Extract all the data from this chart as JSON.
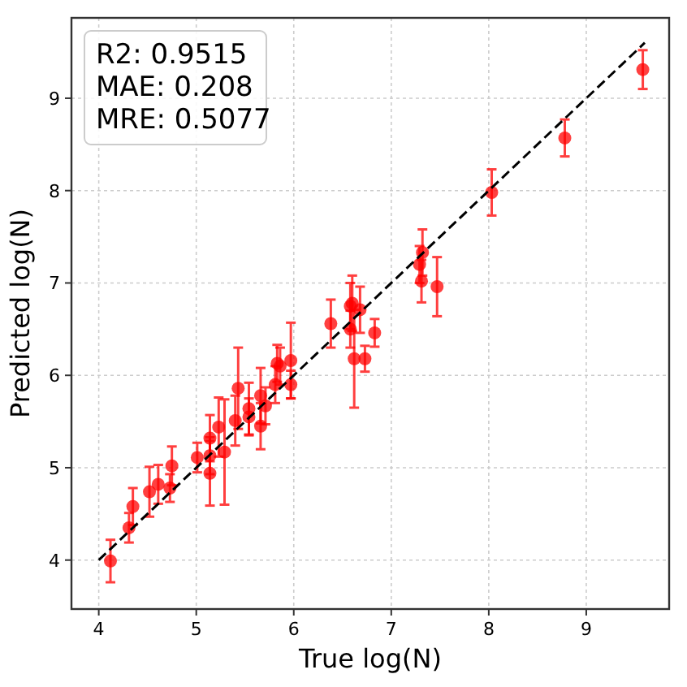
{
  "chart_data": {
    "type": "scatter",
    "xlabel": "True log(N)",
    "ylabel": "Predicted log(N)",
    "xlim": [
      3.72,
      9.85
    ],
    "ylim": [
      3.47,
      9.87
    ],
    "xticks": [
      4,
      5,
      6,
      7,
      8,
      9
    ],
    "yticks": [
      4,
      5,
      6,
      7,
      8,
      9
    ],
    "grid": true,
    "annotations": [
      "R2: 0.9515",
      "MAE: 0.208",
      "MRE: 0.5077"
    ],
    "series": [
      {
        "color": "#ff0000",
        "marker": "circle",
        "x": [
          4.12,
          4.31,
          4.35,
          4.52,
          4.61,
          4.75,
          4.73,
          5.01,
          5.14,
          5.14,
          5.14,
          5.23,
          5.29,
          5.43,
          5.4,
          5.54,
          5.54,
          5.66,
          5.66,
          5.71,
          5.81,
          5.83,
          5.86,
          5.97,
          5.97,
          6.38,
          6.58,
          6.6,
          6.58,
          6.62,
          6.68,
          6.73,
          6.83,
          7.29,
          7.32,
          7.31,
          7.47,
          8.03,
          8.78,
          9.58
        ],
        "values": [
          3.99,
          4.35,
          4.58,
          4.74,
          4.82,
          5.02,
          4.78,
          5.11,
          5.13,
          4.94,
          5.32,
          5.44,
          5.17,
          5.86,
          5.51,
          5.64,
          5.55,
          5.78,
          5.45,
          5.67,
          5.9,
          6.13,
          6.1,
          5.9,
          6.16,
          6.56,
          6.75,
          6.78,
          6.5,
          6.18,
          6.71,
          6.18,
          6.46,
          7.2,
          7.33,
          7.02,
          6.96,
          7.98,
          8.57,
          9.31
        ],
        "errors": [
          0.23,
          0.16,
          0.2,
          0.27,
          0.21,
          0.21,
          0.15,
          0.16,
          0.2,
          0.35,
          0.25,
          0.32,
          0.57,
          0.44,
          0.27,
          0.28,
          0.2,
          0.3,
          0.25,
          0.2,
          0.2,
          0.2,
          0.2,
          0.15,
          0.41,
          0.26,
          0.25,
          0.3,
          0.2,
          0.53,
          0.25,
          0.14,
          0.15,
          0.2,
          0.25,
          0.23,
          0.32,
          0.25,
          0.2,
          0.21
        ]
      },
      {
        "type": "line",
        "color": "#000000",
        "line_style": "dashed",
        "x": [
          4,
          9.6
        ],
        "values": [
          4,
          9.6
        ]
      }
    ]
  }
}
